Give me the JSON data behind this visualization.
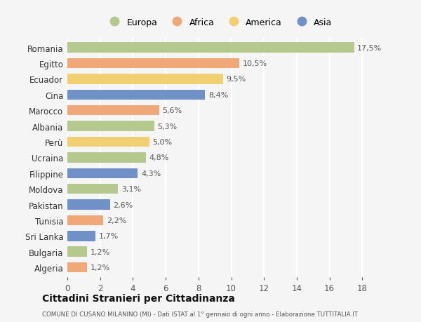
{
  "countries": [
    "Romania",
    "Egitto",
    "Ecuador",
    "Cina",
    "Marocco",
    "Albania",
    "Perù",
    "Ucraina",
    "Filippine",
    "Moldova",
    "Pakistan",
    "Tunisia",
    "Sri Lanka",
    "Bulgaria",
    "Algeria"
  ],
  "values": [
    17.5,
    10.5,
    9.5,
    8.4,
    5.6,
    5.3,
    5.0,
    4.8,
    4.3,
    3.1,
    2.6,
    2.2,
    1.7,
    1.2,
    1.2
  ],
  "labels": [
    "17,5%",
    "10,5%",
    "9,5%",
    "8,4%",
    "5,6%",
    "5,3%",
    "5,0%",
    "4,8%",
    "4,3%",
    "3,1%",
    "2,6%",
    "2,2%",
    "1,7%",
    "1,2%",
    "1,2%"
  ],
  "regions": [
    "Europa",
    "Africa",
    "America",
    "Asia",
    "Africa",
    "Europa",
    "America",
    "Europa",
    "Asia",
    "Europa",
    "Asia",
    "Africa",
    "Asia",
    "Europa",
    "Africa"
  ],
  "colors": {
    "Europa": "#b5c98e",
    "Africa": "#f0a878",
    "America": "#f0d070",
    "Asia": "#7090c8"
  },
  "legend_order": [
    "Europa",
    "Africa",
    "America",
    "Asia"
  ],
  "title": "Cittadini Stranieri per Cittadinanza",
  "subtitle": "COMUNE DI CUSANO MILANINO (MI) - Dati ISTAT al 1° gennaio di ogni anno - Elaborazione TUTTITALIA.IT",
  "xlim": [
    0,
    18
  ],
  "xticks": [
    0,
    2,
    4,
    6,
    8,
    10,
    12,
    14,
    16,
    18
  ],
  "bg_color": "#f5f5f5",
  "grid_color": "#ffffff"
}
